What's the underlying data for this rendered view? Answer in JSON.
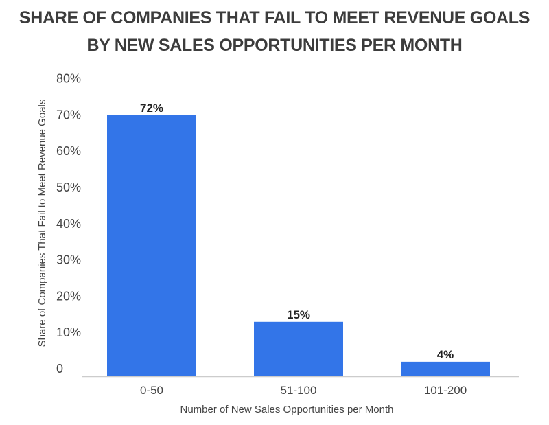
{
  "chart_data": {
    "type": "bar",
    "title_line1": "SHARE OF COMPANIES THAT FAIL TO MEET REVENUE GOALS",
    "title_line2": "BY NEW SALES OPPORTUNITIES PER MONTH",
    "xlabel": "Number of New Sales Opportunities per Month",
    "ylabel": "Share of Companies That Fail to Meet Revenue Goals",
    "categories": [
      "0-50",
      "51-100",
      "101-200"
    ],
    "values": [
      72,
      15,
      4
    ],
    "data_labels": [
      "72%",
      "15%",
      "4%"
    ],
    "ylim": [
      0,
      80
    ],
    "yticks": [
      0,
      10,
      20,
      30,
      40,
      50,
      60,
      70,
      80
    ],
    "ytick_labels": [
      "0",
      "10%",
      "20%",
      "30%",
      "40%",
      "50%",
      "60%",
      "70%",
      "80%"
    ],
    "grid": false,
    "bar_color": "#3375E8"
  }
}
